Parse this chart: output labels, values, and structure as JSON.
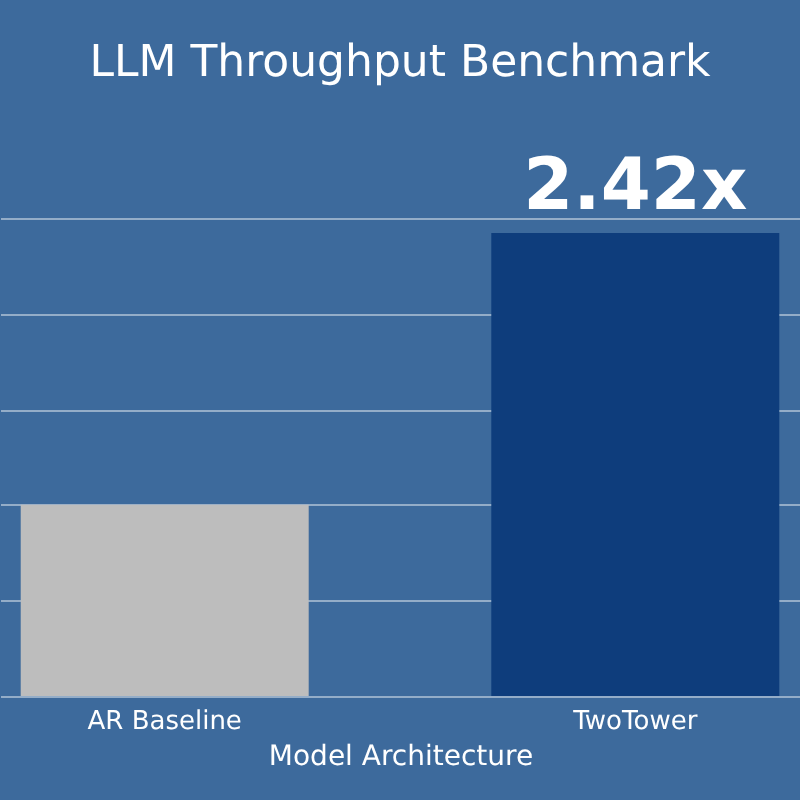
{
  "chart_data": {
    "type": "bar",
    "title": "LLM Throughput Benchmark",
    "xlabel": "Model Architecture",
    "categories": [
      "AR Baseline",
      "TwoTower"
    ],
    "values": [
      1,
      2.42
    ],
    "colors": [
      "#bdbdbd",
      "#0e3d7c"
    ],
    "value_labels": [
      null,
      "2.42x"
    ],
    "yticks": [
      0,
      0.5,
      1,
      1.5,
      2,
      2.5
    ],
    "grid": "y",
    "tick_labels": "x"
  }
}
